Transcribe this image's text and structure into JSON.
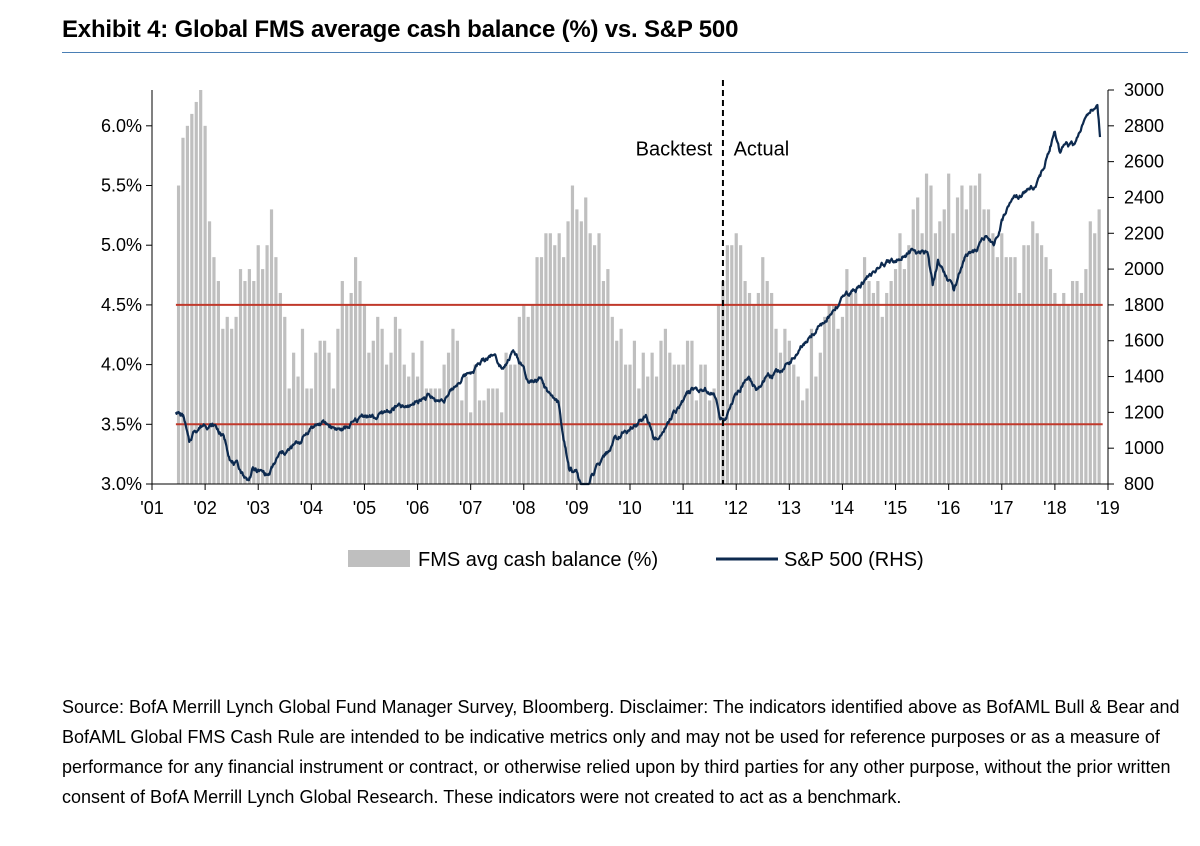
{
  "title": "Exhibit 4: Global FMS average cash balance (%) vs. S&P 500",
  "source_text": "Source: BofA Merrill Lynch Global Fund Manager Survey, Bloomberg. Disclaimer: The indicators identified above as BofAML Bull & Bear and BofAML Global FMS Cash Rule are intended to be indicative metrics only and may not be used for reference purposes or as a measure of performance for any financial instrument or contract, or otherwise relied upon by third parties for any other purpose, without the prior written consent of BofA Merrill Lynch Global Research. These indicators were not created to act as a benchmark.",
  "chart_data": {
    "type": "bar",
    "title": "Exhibit 4: Global FMS average cash balance (%) vs. S&P 500",
    "x_range": [
      2001.0,
      2019.0
    ],
    "x_ticks": [
      {
        "label": "'01",
        "value": 2001
      },
      {
        "label": "'02",
        "value": 2002
      },
      {
        "label": "'03",
        "value": 2003
      },
      {
        "label": "'04",
        "value": 2004
      },
      {
        "label": "'05",
        "value": 2005
      },
      {
        "label": "'06",
        "value": 2006
      },
      {
        "label": "'07",
        "value": 2007
      },
      {
        "label": "'08",
        "value": 2008
      },
      {
        "label": "'09",
        "value": 2009
      },
      {
        "label": "'10",
        "value": 2010
      },
      {
        "label": "'11",
        "value": 2011
      },
      {
        "label": "'12",
        "value": 2012
      },
      {
        "label": "'13",
        "value": 2013
      },
      {
        "label": "'14",
        "value": 2014
      },
      {
        "label": "'15",
        "value": 2015
      },
      {
        "label": "'16",
        "value": 2016
      },
      {
        "label": "'17",
        "value": 2017
      },
      {
        "label": "'18",
        "value": 2018
      },
      {
        "label": "'19",
        "value": 2019
      }
    ],
    "y_left": {
      "range": [
        3.0,
        6.3
      ],
      "ticks": [
        3.0,
        3.5,
        4.0,
        4.5,
        5.0,
        5.5,
        6.0
      ],
      "tick_labels": [
        "3.0%",
        "3.5%",
        "4.0%",
        "4.5%",
        "5.0%",
        "5.5%",
        "6.0%"
      ]
    },
    "y_right": {
      "range": [
        800,
        3000
      ],
      "ticks": [
        800,
        1000,
        1200,
        1400,
        1600,
        1800,
        2000,
        2200,
        2400,
        2600,
        2800,
        3000
      ],
      "tick_labels": [
        "800",
        "1000",
        "1200",
        "1400",
        "1600",
        "1800",
        "2000",
        "2200",
        "2400",
        "2600",
        "2800",
        "3000"
      ]
    },
    "thresholds": [
      {
        "value": 4.5,
        "color": "#c0392b"
      },
      {
        "value": 3.5,
        "color": "#c0392b"
      }
    ],
    "divider_x": 2011.75,
    "annotations": [
      {
        "text": "Backtest",
        "x": 2011.55,
        "y_pct": 5.75,
        "anchor": "end"
      },
      {
        "text": "Actual",
        "x": 2011.95,
        "y_pct": 5.75,
        "anchor": "start"
      }
    ],
    "series": [
      {
        "name": "FMS avg cash balance (%)",
        "axis": "left",
        "type": "bar",
        "color": "#bfbfbf",
        "anchors": [
          [
            2001.5,
            5.7
          ],
          [
            2001.6,
            5.8
          ],
          [
            2001.75,
            6.1
          ],
          [
            2001.85,
            6.3
          ],
          [
            2002.0,
            5.9
          ],
          [
            2002.1,
            5.0
          ],
          [
            2002.3,
            4.6
          ],
          [
            2002.5,
            4.2
          ],
          [
            2002.6,
            4.5
          ],
          [
            2002.8,
            4.9
          ],
          [
            2002.95,
            4.8
          ],
          [
            2003.15,
            4.7
          ],
          [
            2003.3,
            5.4
          ],
          [
            2003.45,
            4.3
          ],
          [
            2003.6,
            3.9
          ],
          [
            2003.8,
            4.1
          ],
          [
            2004.0,
            3.9
          ],
          [
            2004.2,
            4.3
          ],
          [
            2004.4,
            4.0
          ],
          [
            2004.6,
            4.5
          ],
          [
            2004.8,
            4.8
          ],
          [
            2005.0,
            4.4
          ],
          [
            2005.2,
            4.2
          ],
          [
            2005.4,
            4.2
          ],
          [
            2005.6,
            4.1
          ],
          [
            2005.8,
            4.0
          ],
          [
            2006.0,
            4.1
          ],
          [
            2006.2,
            3.9
          ],
          [
            2006.4,
            3.7
          ],
          [
            2006.6,
            4.2
          ],
          [
            2006.8,
            3.9
          ],
          [
            2007.0,
            3.8
          ],
          [
            2007.2,
            3.7
          ],
          [
            2007.4,
            3.8
          ],
          [
            2007.6,
            3.9
          ],
          [
            2007.8,
            4.1
          ],
          [
            2008.0,
            4.3
          ],
          [
            2008.2,
            4.8
          ],
          [
            2008.4,
            5.0
          ],
          [
            2008.6,
            4.9
          ],
          [
            2008.8,
            5.2
          ],
          [
            2008.95,
            5.5
          ],
          [
            2009.1,
            5.3
          ],
          [
            2009.3,
            5.0
          ],
          [
            2009.5,
            4.8
          ],
          [
            2009.7,
            4.4
          ],
          [
            2009.9,
            4.2
          ],
          [
            2010.1,
            4.0
          ],
          [
            2010.3,
            3.8
          ],
          [
            2010.5,
            4.1
          ],
          [
            2010.7,
            4.1
          ],
          [
            2010.9,
            3.9
          ],
          [
            2011.1,
            4.0
          ],
          [
            2011.3,
            3.9
          ],
          [
            2011.5,
            3.8
          ],
          [
            2011.65,
            4.2
          ],
          [
            2011.8,
            4.9
          ],
          [
            2012.0,
            5.0
          ],
          [
            2012.2,
            4.8
          ],
          [
            2012.4,
            4.6
          ],
          [
            2012.6,
            4.8
          ],
          [
            2012.8,
            4.4
          ],
          [
            2013.0,
            4.2
          ],
          [
            2013.2,
            3.9
          ],
          [
            2013.4,
            4.0
          ],
          [
            2013.6,
            4.3
          ],
          [
            2013.8,
            4.6
          ],
          [
            2014.0,
            4.5
          ],
          [
            2014.2,
            4.7
          ],
          [
            2014.4,
            4.7
          ],
          [
            2014.6,
            4.8
          ],
          [
            2014.8,
            4.5
          ],
          [
            2015.0,
            5.0
          ],
          [
            2015.2,
            4.9
          ],
          [
            2015.4,
            5.2
          ],
          [
            2015.6,
            5.4
          ],
          [
            2015.8,
            5.3
          ],
          [
            2016.0,
            5.4
          ],
          [
            2016.2,
            5.2
          ],
          [
            2016.4,
            5.5
          ],
          [
            2016.6,
            5.7
          ],
          [
            2016.8,
            5.0
          ],
          [
            2017.0,
            5.0
          ],
          [
            2017.2,
            4.8
          ],
          [
            2017.4,
            4.9
          ],
          [
            2017.6,
            5.0
          ],
          [
            2017.8,
            4.8
          ],
          [
            2018.0,
            4.6
          ],
          [
            2018.2,
            4.5
          ],
          [
            2018.4,
            4.5
          ],
          [
            2018.6,
            5.0
          ],
          [
            2018.75,
            5.0
          ],
          [
            2018.85,
            5.1
          ]
        ]
      },
      {
        "name": "S&P 500 (RHS)",
        "axis": "right",
        "type": "line",
        "color": "#0d2a4f",
        "anchors": [
          [
            2001.45,
            1210
          ],
          [
            2001.6,
            1170
          ],
          [
            2001.7,
            1020
          ],
          [
            2001.8,
            1100
          ],
          [
            2002.0,
            1140
          ],
          [
            2002.2,
            1120
          ],
          [
            2002.35,
            1060
          ],
          [
            2002.5,
            930
          ],
          [
            2002.6,
            900
          ],
          [
            2002.7,
            860
          ],
          [
            2002.8,
            820
          ],
          [
            2002.9,
            880
          ],
          [
            2003.0,
            870
          ],
          [
            2003.2,
            850
          ],
          [
            2003.4,
            960
          ],
          [
            2003.6,
            990
          ],
          [
            2003.8,
            1040
          ],
          [
            2004.0,
            1120
          ],
          [
            2004.2,
            1140
          ],
          [
            2004.4,
            1120
          ],
          [
            2004.6,
            1100
          ],
          [
            2004.8,
            1140
          ],
          [
            2005.0,
            1190
          ],
          [
            2005.2,
            1170
          ],
          [
            2005.4,
            1200
          ],
          [
            2005.6,
            1230
          ],
          [
            2005.8,
            1220
          ],
          [
            2006.0,
            1270
          ],
          [
            2006.2,
            1290
          ],
          [
            2006.4,
            1260
          ],
          [
            2006.6,
            1300
          ],
          [
            2006.8,
            1380
          ],
          [
            2007.0,
            1430
          ],
          [
            2007.2,
            1480
          ],
          [
            2007.4,
            1530
          ],
          [
            2007.6,
            1460
          ],
          [
            2007.8,
            1540
          ],
          [
            2007.95,
            1470
          ],
          [
            2008.1,
            1350
          ],
          [
            2008.3,
            1380
          ],
          [
            2008.5,
            1280
          ],
          [
            2008.65,
            1250
          ],
          [
            2008.75,
            1050
          ],
          [
            2008.85,
            880
          ],
          [
            2009.0,
            870
          ],
          [
            2009.15,
            720
          ],
          [
            2009.3,
            850
          ],
          [
            2009.5,
            930
          ],
          [
            2009.7,
            1040
          ],
          [
            2009.9,
            1090
          ],
          [
            2010.1,
            1120
          ],
          [
            2010.3,
            1180
          ],
          [
            2010.45,
            1070
          ],
          [
            2010.6,
            1090
          ],
          [
            2010.8,
            1180
          ],
          [
            2011.0,
            1270
          ],
          [
            2011.2,
            1330
          ],
          [
            2011.4,
            1330
          ],
          [
            2011.6,
            1290
          ],
          [
            2011.7,
            1150
          ],
          [
            2011.85,
            1200
          ],
          [
            2012.0,
            1300
          ],
          [
            2012.2,
            1400
          ],
          [
            2012.4,
            1330
          ],
          [
            2012.6,
            1410
          ],
          [
            2012.8,
            1420
          ],
          [
            2013.0,
            1480
          ],
          [
            2013.2,
            1560
          ],
          [
            2013.4,
            1630
          ],
          [
            2013.6,
            1690
          ],
          [
            2013.8,
            1760
          ],
          [
            2014.0,
            1830
          ],
          [
            2014.2,
            1870
          ],
          [
            2014.4,
            1940
          ],
          [
            2014.6,
            1980
          ],
          [
            2014.8,
            2030
          ],
          [
            2015.0,
            2060
          ],
          [
            2015.2,
            2090
          ],
          [
            2015.4,
            2100
          ],
          [
            2015.6,
            2100
          ],
          [
            2015.7,
            1910
          ],
          [
            2015.8,
            2050
          ],
          [
            2016.0,
            1930
          ],
          [
            2016.1,
            1870
          ],
          [
            2016.3,
            2060
          ],
          [
            2016.5,
            2090
          ],
          [
            2016.7,
            2170
          ],
          [
            2016.85,
            2140
          ],
          [
            2017.0,
            2270
          ],
          [
            2017.2,
            2370
          ],
          [
            2017.4,
            2420
          ],
          [
            2017.6,
            2470
          ],
          [
            2017.8,
            2570
          ],
          [
            2018.0,
            2770
          ],
          [
            2018.1,
            2640
          ],
          [
            2018.2,
            2680
          ],
          [
            2018.4,
            2700
          ],
          [
            2018.55,
            2820
          ],
          [
            2018.7,
            2900
          ],
          [
            2018.8,
            2920
          ],
          [
            2018.85,
            2740
          ]
        ]
      }
    ],
    "legend": "bottom-center"
  }
}
